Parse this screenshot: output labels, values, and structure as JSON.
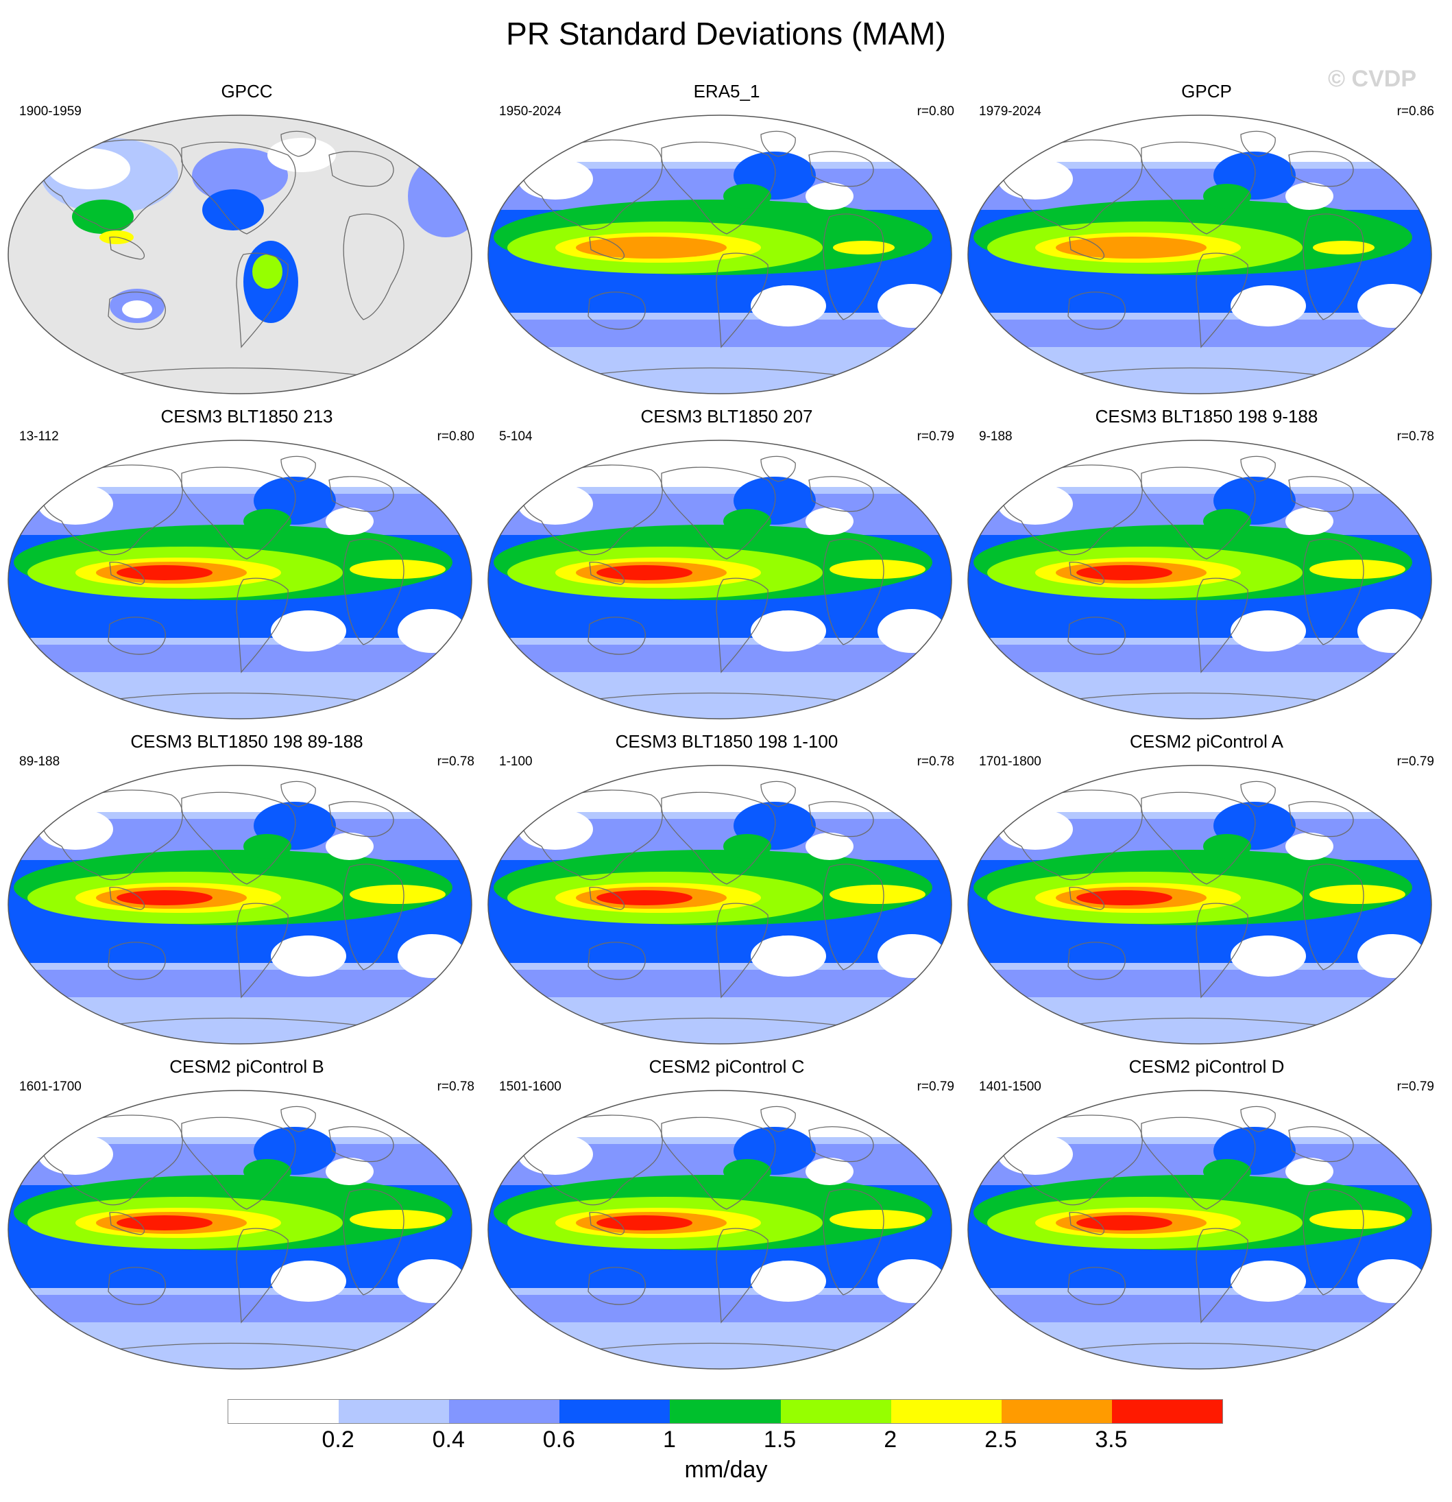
{
  "title": "PR Standard Deviations (MAM)",
  "watermark": "© CVDP",
  "panels": [
    {
      "title": "GPCC",
      "years": "1900-1959",
      "r": "",
      "style": "obs_land"
    },
    {
      "title": "ERA5_1",
      "years": "1950-2024",
      "r": "r=0.80",
      "style": "obs"
    },
    {
      "title": "GPCP",
      "years": "1979-2024",
      "r": "r=0.86",
      "style": "obs"
    },
    {
      "title": "CESM3 BLT1850 213",
      "years": "13-112",
      "r": "r=0.80",
      "style": "cesm3"
    },
    {
      "title": "CESM3 BLT1850 207",
      "years": "5-104",
      "r": "r=0.79",
      "style": "cesm3"
    },
    {
      "title": "CESM3 BLT1850 198 9-188",
      "years": "9-188",
      "r": "r=0.78",
      "style": "cesm3"
    },
    {
      "title": "CESM3 BLT1850 198 89-188",
      "years": "89-188",
      "r": "r=0.78",
      "style": "cesm3"
    },
    {
      "title": "CESM3 BLT1850 198 1-100",
      "years": "1-100",
      "r": "r=0.78",
      "style": "cesm3"
    },
    {
      "title": "CESM2 piControl A",
      "years": "1701-1800",
      "r": "r=0.79",
      "style": "cesm2"
    },
    {
      "title": "CESM2 piControl B",
      "years": "1601-1700",
      "r": "r=0.78",
      "style": "cesm2"
    },
    {
      "title": "CESM2 piControl C",
      "years": "1501-1600",
      "r": "r=0.79",
      "style": "cesm2"
    },
    {
      "title": "CESM2 piControl D",
      "years": "1401-1500",
      "r": "r=0.79",
      "style": "cesm2"
    }
  ],
  "colorbar": {
    "colors": [
      "#ffffff",
      "#b4c8ff",
      "#8296ff",
      "#0a5aff",
      "#00c02d",
      "#96ff00",
      "#ffff00",
      "#ff9b00",
      "#ff1a00"
    ],
    "labels": [
      "0.2",
      "0.4",
      "0.6",
      "1",
      "1.5",
      "2",
      "2.5",
      "3.5"
    ],
    "units": "mm/day"
  }
}
